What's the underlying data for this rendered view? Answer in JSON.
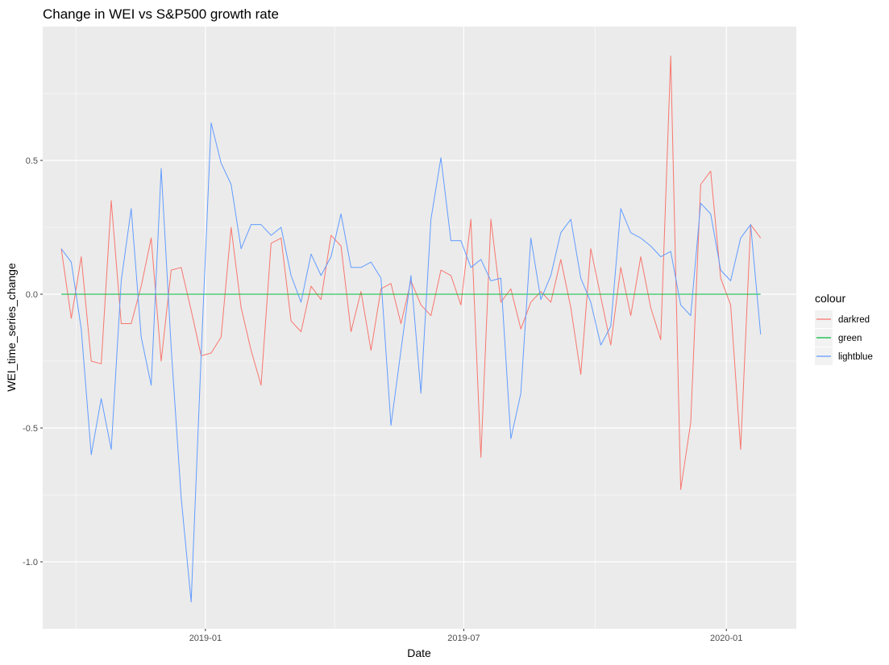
{
  "chart_data": {
    "type": "line",
    "title": "Change in WEI vs S&P500 growth rate",
    "xlabel": "Date",
    "ylabel": "WEI_time_series_change",
    "x_axis_type": "date",
    "xlim": [
      "2018-09-09",
      "2020-02-19"
    ],
    "ylim": [
      -1.25,
      1.0
    ],
    "x_ticks": [
      {
        "value": "2019-01-01",
        "label": "2019-01"
      },
      {
        "value": "2019-07-01",
        "label": "2019-07"
      },
      {
        "value": "2020-01-01",
        "label": "2020-01"
      }
    ],
    "y_ticks": [
      {
        "value": -1.0,
        "label": "-1.0"
      },
      {
        "value": -0.5,
        "label": "-0.5"
      },
      {
        "value": 0.0,
        "label": "0.0"
      },
      {
        "value": 0.5,
        "label": "0.5"
      }
    ],
    "grid": true,
    "legend": {
      "title": "colour",
      "position": "right"
    },
    "x": [
      "2018-09-22",
      "2018-09-29",
      "2018-10-06",
      "2018-10-13",
      "2018-10-20",
      "2018-10-27",
      "2018-11-03",
      "2018-11-10",
      "2018-11-17",
      "2018-11-24",
      "2018-12-01",
      "2018-12-08",
      "2018-12-15",
      "2018-12-22",
      "2018-12-29",
      "2019-01-05",
      "2019-01-12",
      "2019-01-19",
      "2019-01-26",
      "2019-02-02",
      "2019-02-09",
      "2019-02-16",
      "2019-02-23",
      "2019-03-02",
      "2019-03-09",
      "2019-03-16",
      "2019-03-23",
      "2019-03-30",
      "2019-04-06",
      "2019-04-13",
      "2019-04-20",
      "2019-04-27",
      "2019-05-04",
      "2019-05-11",
      "2019-05-18",
      "2019-05-25",
      "2019-06-01",
      "2019-06-08",
      "2019-06-15",
      "2019-06-22",
      "2019-06-29",
      "2019-07-06",
      "2019-07-13",
      "2019-07-20",
      "2019-07-27",
      "2019-08-03",
      "2019-08-10",
      "2019-08-17",
      "2019-08-24",
      "2019-08-31",
      "2019-09-07",
      "2019-09-14",
      "2019-09-21",
      "2019-09-28",
      "2019-10-05",
      "2019-10-12",
      "2019-10-19",
      "2019-10-26",
      "2019-11-02",
      "2019-11-09",
      "2019-11-16",
      "2019-11-23",
      "2019-11-30",
      "2019-12-07",
      "2019-12-14",
      "2019-12-21",
      "2019-12-28",
      "2020-01-04",
      "2020-01-11",
      "2020-01-18",
      "2020-01-25"
    ],
    "series": [
      {
        "name": "darkred",
        "color": "#F8766D",
        "values": [
          0.17,
          -0.09,
          0.14,
          -0.25,
          -0.26,
          0.35,
          -0.11,
          -0.11,
          0.03,
          0.21,
          -0.25,
          0.09,
          0.1,
          -0.06,
          -0.23,
          -0.22,
          -0.16,
          0.25,
          -0.05,
          -0.21,
          -0.34,
          0.19,
          0.21,
          -0.1,
          -0.14,
          0.03,
          -0.02,
          0.22,
          0.18,
          -0.14,
          0.01,
          -0.21,
          0.02,
          0.04,
          -0.11,
          0.05,
          -0.04,
          -0.08,
          0.09,
          0.07,
          -0.04,
          0.28,
          -0.61,
          0.28,
          -0.03,
          0.02,
          -0.13,
          -0.03,
          0.01,
          -0.03,
          0.13,
          -0.05,
          -0.3,
          0.17,
          -0.01,
          -0.19,
          0.1,
          -0.08,
          0.14,
          -0.05,
          -0.17,
          0.89,
          -0.73,
          -0.48,
          0.41,
          0.46,
          0.06,
          -0.04,
          -0.58,
          0.26,
          0.21
        ]
      },
      {
        "name": "green",
        "color": "#00BA38",
        "values": [
          0,
          0,
          0,
          0,
          0,
          0,
          0,
          0,
          0,
          0,
          0,
          0,
          0,
          0,
          0,
          0,
          0,
          0,
          0,
          0,
          0,
          0,
          0,
          0,
          0,
          0,
          0,
          0,
          0,
          0,
          0,
          0,
          0,
          0,
          0,
          0,
          0,
          0,
          0,
          0,
          0,
          0,
          0,
          0,
          0,
          0,
          0,
          0,
          0,
          0,
          0,
          0,
          0,
          0,
          0,
          0,
          0,
          0,
          0,
          0,
          0,
          0,
          0,
          0,
          0,
          0,
          0,
          0,
          0,
          0,
          0
        ]
      },
      {
        "name": "lightblue",
        "color": "#619CFF",
        "values": [
          0.17,
          0.12,
          -0.13,
          -0.6,
          -0.39,
          -0.58,
          0.05,
          0.32,
          -0.16,
          -0.34,
          0.47,
          -0.2,
          -0.76,
          -1.15,
          -0.23,
          0.64,
          0.49,
          0.41,
          0.17,
          0.26,
          0.26,
          0.22,
          0.25,
          0.07,
          -0.03,
          0.15,
          0.07,
          0.14,
          0.3,
          0.1,
          0.1,
          0.12,
          0.06,
          -0.49,
          -0.21,
          0.07,
          -0.37,
          0.28,
          0.51,
          0.2,
          0.2,
          0.1,
          0.13,
          0.05,
          0.06,
          -0.54,
          -0.37,
          0.21,
          -0.02,
          0.07,
          0.23,
          0.28,
          0.06,
          -0.03,
          -0.19,
          -0.12,
          0.32,
          0.23,
          0.21,
          0.18,
          0.14,
          0.16,
          -0.04,
          -0.08,
          0.34,
          0.3,
          0.09,
          0.05,
          0.21,
          0.26,
          -0.15
        ]
      }
    ]
  }
}
